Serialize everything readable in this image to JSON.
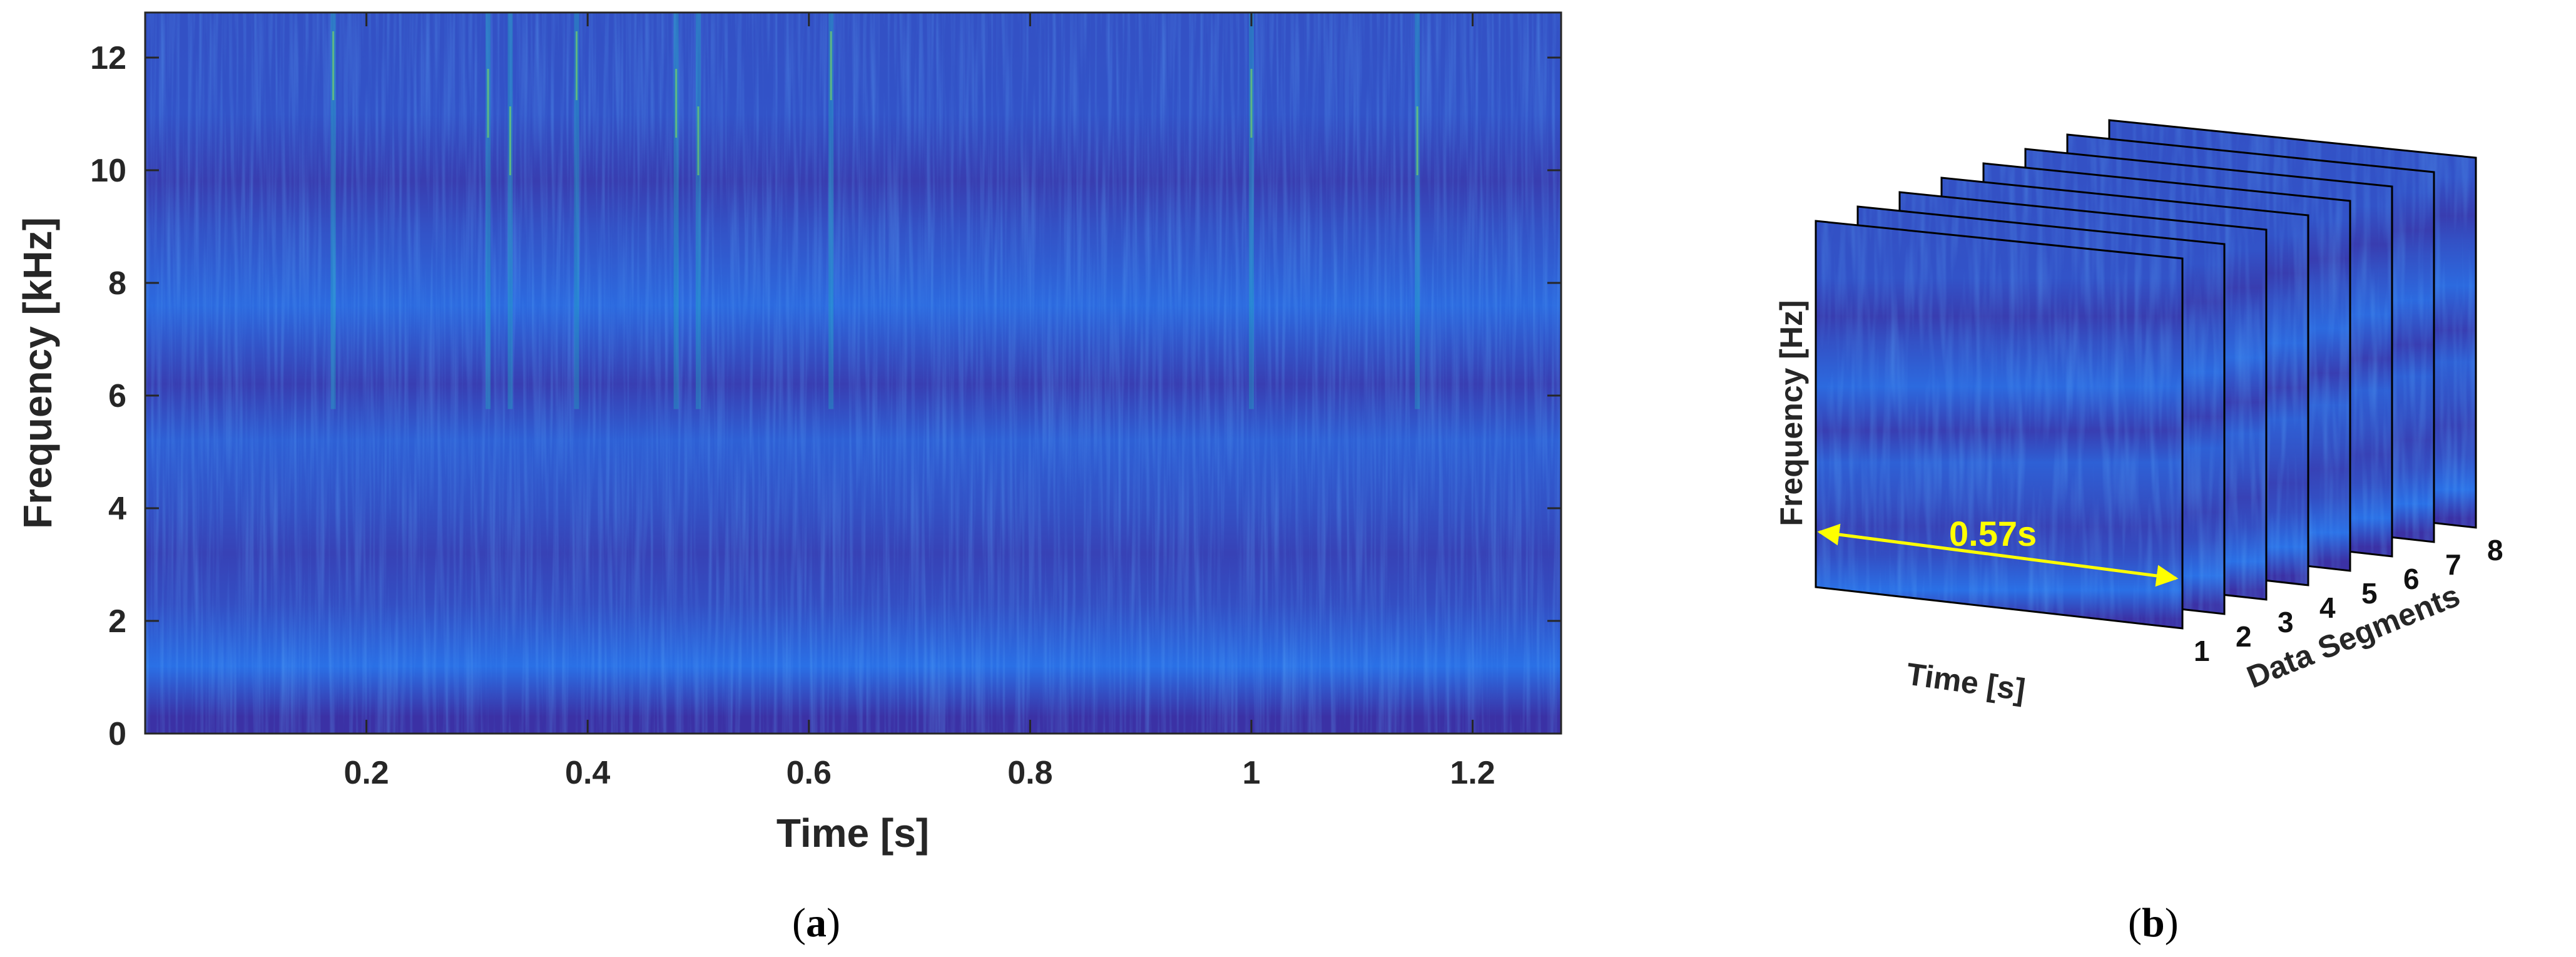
{
  "panels": {
    "a": {
      "caption_open": "(",
      "caption_letter": "a",
      "caption_close": ")"
    },
    "b": {
      "caption_open": "(",
      "caption_letter": "b",
      "caption_close": ")"
    }
  },
  "chart_data": [
    {
      "type": "heatmap",
      "title": "",
      "xlabel": "Time [s]",
      "ylabel": "Frequency [kHz]",
      "xlim": [
        0.0,
        1.28
      ],
      "ylim": [
        0,
        12.8
      ],
      "x_ticks": [
        0.2,
        0.4,
        0.6,
        0.8,
        1,
        1.2
      ],
      "x_tick_labels": [
        "0.2",
        "0.4",
        "0.6",
        "0.8",
        "1",
        "1.2"
      ],
      "y_ticks": [
        0,
        2,
        4,
        6,
        8,
        10,
        12
      ],
      "y_tick_labels": [
        "0",
        "2",
        "4",
        "6",
        "8",
        "10",
        "12"
      ],
      "colormap": "parula",
      "colors": {
        "low": "#3d2b9e",
        "mid": "#2a70e6",
        "high": "#1fb8c0",
        "peak": "#7fe05a"
      },
      "frequency_bands_khz": [
        {
          "center": 0.3,
          "intensity": 0.05
        },
        {
          "center": 1.2,
          "intensity": 0.55
        },
        {
          "center": 2.3,
          "intensity": 0.28
        },
        {
          "center": 3.2,
          "intensity": 0.18
        },
        {
          "center": 4.0,
          "intensity": 0.3
        },
        {
          "center": 5.2,
          "intensity": 0.42
        },
        {
          "center": 6.2,
          "intensity": 0.15
        },
        {
          "center": 7.6,
          "intensity": 0.5
        },
        {
          "center": 9.0,
          "intensity": 0.3
        },
        {
          "center": 9.8,
          "intensity": 0.14
        },
        {
          "center": 11.0,
          "intensity": 0.32
        },
        {
          "center": 12.3,
          "intensity": 0.3
        }
      ],
      "bright_streaks_s": [
        0.17,
        0.31,
        0.33,
        0.39,
        0.48,
        0.5,
        0.62,
        1.0,
        1.15
      ]
    },
    {
      "type": "diagram",
      "title": "",
      "xlabel": "Time [s]",
      "ylabel": "Frequency [Hz]",
      "depth_label": "Data Segments",
      "segments": [
        "1",
        "2",
        "3",
        "4",
        "5",
        "6",
        "7",
        "8"
      ],
      "segment_duration_label": "0.57s",
      "colors": {
        "arrow": "#ffff00",
        "frame": "#000000"
      }
    }
  ]
}
